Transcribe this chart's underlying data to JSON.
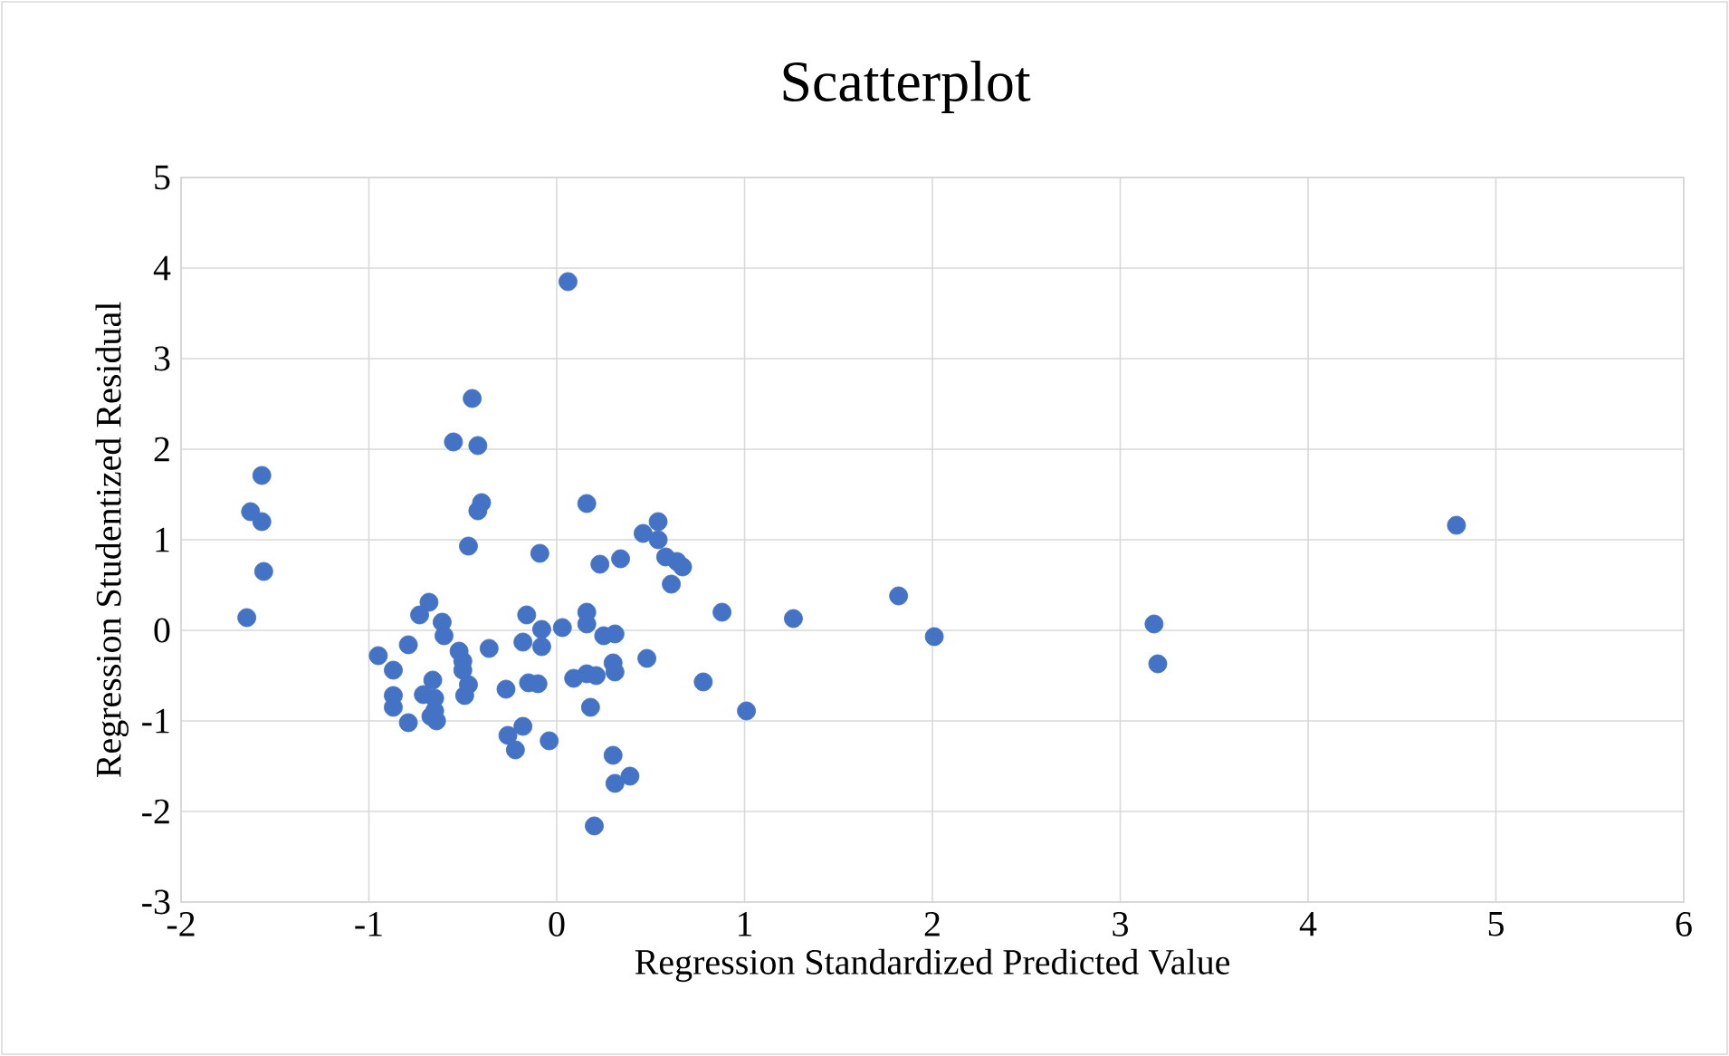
{
  "chart_data": {
    "type": "scatter",
    "title": "Scatterplot",
    "xlabel": "Regression Standardized Predicted Value",
    "ylabel": "Regression Studentized Residual",
    "xlim": [
      -2,
      6
    ],
    "xticks": [
      -2,
      -1,
      0,
      1,
      2,
      3,
      4,
      5,
      6
    ],
    "ylim": [
      -3,
      5
    ],
    "yticks": [
      -3,
      -2,
      -1,
      0,
      1,
      2,
      3,
      4,
      5
    ],
    "grid": true,
    "marker": "circle",
    "series": [
      {
        "color": "#4472c4",
        "x": [
          -1.65,
          -1.63,
          -1.57,
          -1.57,
          -1.56,
          0.06,
          -0.45,
          -0.55,
          -0.42,
          -0.4,
          -0.42,
          -0.47,
          -0.09,
          0.16,
          0.23,
          0.34,
          0.46,
          0.54,
          0.54,
          0.58,
          0.64,
          0.67,
          0.61,
          0.88,
          1.26,
          1.82,
          2.01,
          3.18,
          3.2,
          4.79,
          1.01,
          0.78,
          0.48,
          0.16,
          0.16,
          0.25,
          0.31,
          0.03,
          -0.08,
          -0.16,
          -0.18,
          -0.08,
          -0.36,
          0.3,
          0.31,
          0.21,
          0.16,
          0.09,
          -0.15,
          -0.1,
          -0.27,
          0.18,
          -0.18,
          -0.26,
          -0.22,
          -0.04,
          0.3,
          0.31,
          0.39,
          0.2,
          -0.68,
          -0.73,
          -0.61,
          -0.6,
          -0.79,
          -0.95,
          -0.87,
          -0.52,
          -0.5,
          -0.5,
          -0.47,
          -0.49,
          -0.66,
          -0.65,
          -0.71,
          -0.87,
          -0.87,
          -0.65,
          -0.67,
          -0.64,
          -0.79
        ],
        "values": [
          0.14,
          1.31,
          1.71,
          1.2,
          0.65,
          3.85,
          2.56,
          2.08,
          2.04,
          1.41,
          1.32,
          0.93,
          0.85,
          1.4,
          0.73,
          0.79,
          1.07,
          1.2,
          1.0,
          0.81,
          0.76,
          0.7,
          0.51,
          0.2,
          0.13,
          0.38,
          -0.07,
          0.07,
          -0.37,
          1.16,
          -0.89,
          -0.57,
          -0.31,
          0.2,
          0.07,
          -0.06,
          -0.04,
          0.03,
          0.01,
          0.17,
          -0.13,
          -0.18,
          -0.2,
          -0.36,
          -0.46,
          -0.5,
          -0.48,
          -0.53,
          -0.58,
          -0.59,
          -0.65,
          -0.85,
          -1.06,
          -1.16,
          -1.32,
          -1.22,
          -1.38,
          -1.69,
          -1.61,
          -2.16,
          0.31,
          0.17,
          0.09,
          -0.06,
          -0.16,
          -0.28,
          -0.44,
          -0.23,
          -0.34,
          -0.44,
          -0.6,
          -0.72,
          -0.55,
          -0.75,
          -0.71,
          -0.72,
          -0.85,
          -0.89,
          -0.95,
          -1.0,
          -1.02
        ]
      }
    ]
  }
}
